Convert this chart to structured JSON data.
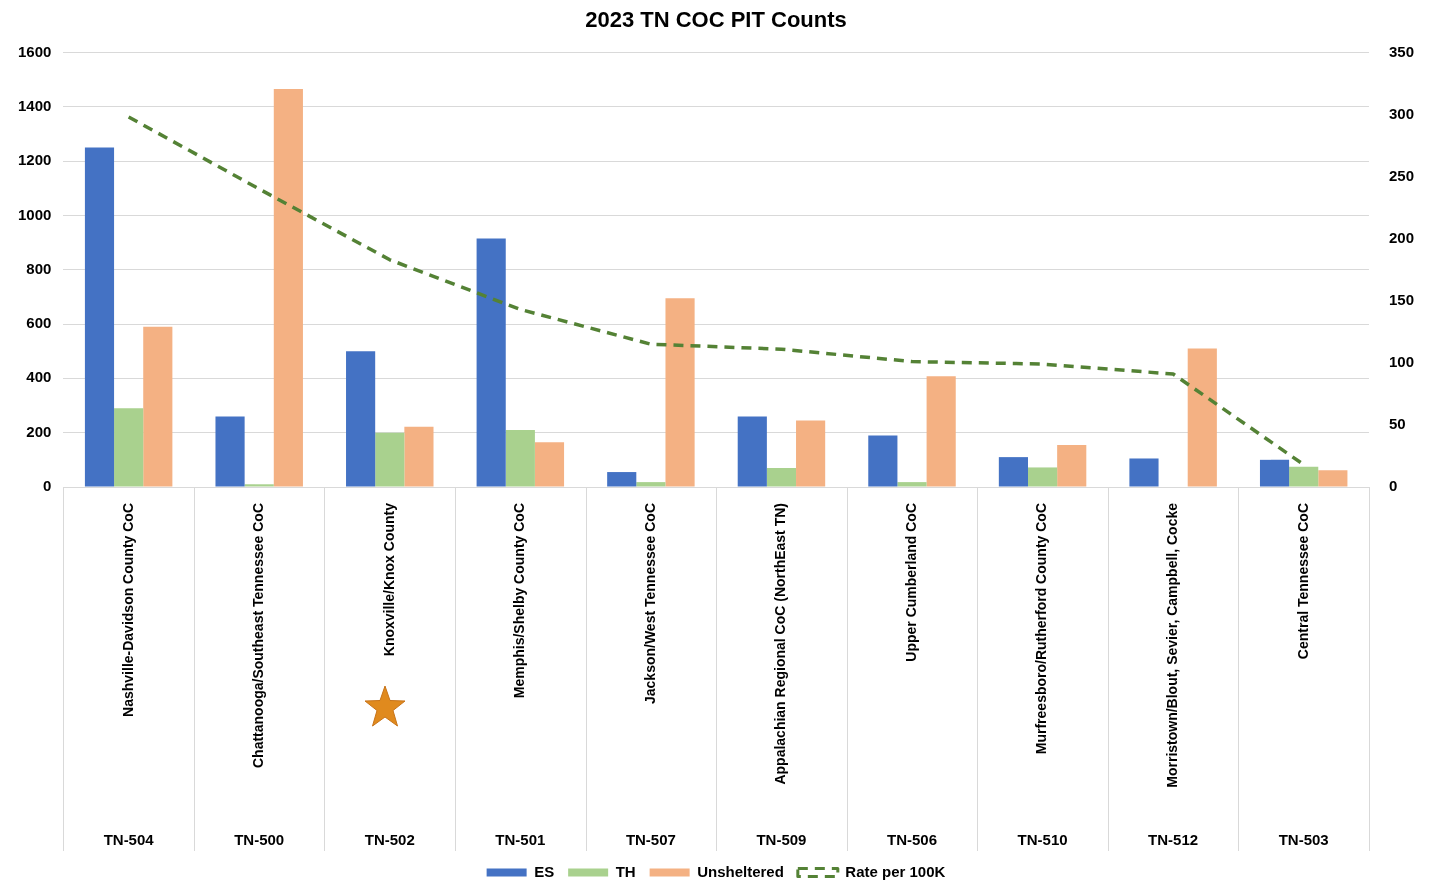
{
  "chart_data": {
    "type": "bar",
    "title": "2023 TN COC PIT Counts",
    "categories": [
      "Nashville-Davidson County CoC",
      "Chattanooga/Southeast Tennessee CoC",
      "Knoxville/Knox County",
      "Memphis/Shelby County CoC",
      "Jackson/West Tennessee CoC",
      "Appalachian Regional CoC (NorthEast TN)",
      "Upper Cumberland CoC",
      "Murfreesboro/Rutherford County CoC",
      "Morristown/Blout, Sevier, Campbell, Cocke",
      "Central Tennessee CoC"
    ],
    "series": [
      {
        "name": "ES",
        "color": "#4472c4",
        "values": [
          1250,
          260,
          500,
          915,
          55,
          260,
          190,
          110,
          105,
          100
        ]
      },
      {
        "name": "TH",
        "color": "#a9d18e",
        "values": [
          290,
          10,
          200,
          210,
          18,
          70,
          18,
          72,
          0,
          75
        ]
      },
      {
        "name": "Unsheltered",
        "color": "#f4b183",
        "values": [
          590,
          1465,
          222,
          165,
          695,
          245,
          408,
          155,
          510,
          62
        ]
      },
      {
        "name": "Rate per 100K",
        "type": "line",
        "axis": "y2",
        "color": "#548235",
        "line_style": "dashed",
        "marker": "none",
        "values": [
          298,
          240,
          183,
          143,
          115,
          111,
          101,
          99,
          91,
          18
        ]
      }
    ],
    "ylim": [
      0,
      1600
    ],
    "yticks": [
      0,
      200,
      400,
      600,
      800,
      1000,
      1200,
      1400,
      1600
    ],
    "y2lim": [
      0,
      350
    ],
    "y2ticks": [
      0,
      50,
      100,
      150,
      200,
      250,
      300,
      350
    ],
    "grid": "y",
    "legend": "bottom",
    "annotations": [
      "TN-504",
      "TN-500",
      "TN-502",
      "TN-501",
      "TN-507",
      "TN-509",
      "TN-506",
      "TN-510",
      "TN-512",
      "TN-503"
    ]
  }
}
